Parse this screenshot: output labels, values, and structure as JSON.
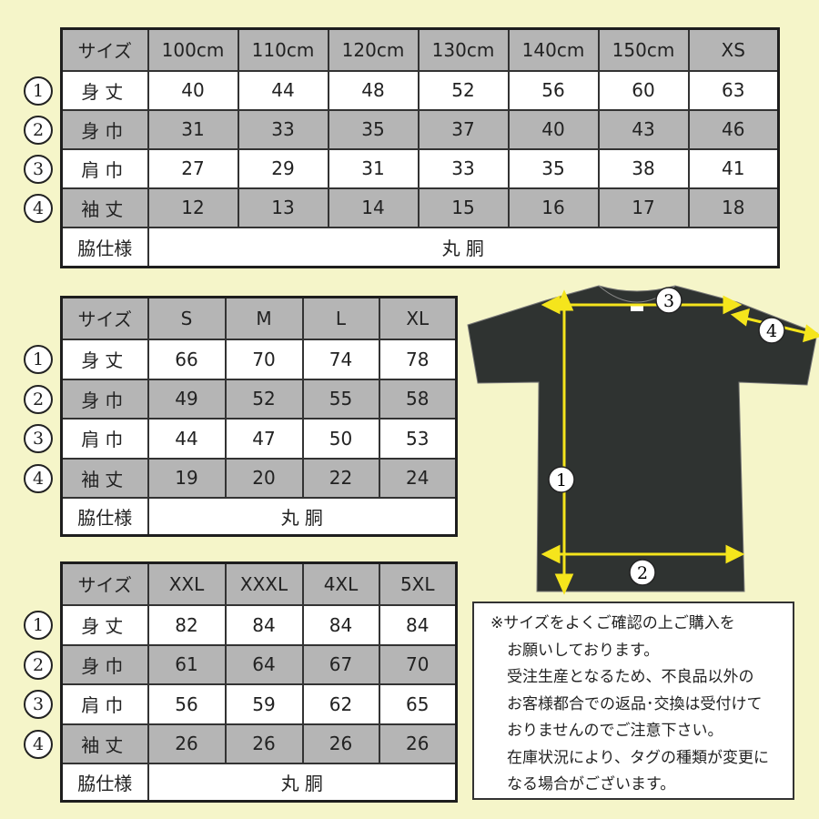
{
  "colors": {
    "background": "#f5f5c9",
    "gray_row": "#b5b5b5",
    "arrow": "#f5e51c",
    "shirt": "#2f3331"
  },
  "circle_numbers": [
    "①",
    "②",
    "③",
    "④"
  ],
  "tables": [
    {
      "header": [
        "サイズ",
        "100cm",
        "110cm",
        "120cm",
        "130cm",
        "140cm",
        "150cm",
        "XS"
      ],
      "rows": [
        {
          "num": "1",
          "label": "身丈",
          "values": [
            "40",
            "44",
            "48",
            "52",
            "56",
            "60",
            "63"
          ]
        },
        {
          "num": "2",
          "label": "身巾",
          "values": [
            "31",
            "33",
            "35",
            "37",
            "40",
            "43",
            "46"
          ]
        },
        {
          "num": "3",
          "label": "肩巾",
          "values": [
            "27",
            "29",
            "31",
            "33",
            "35",
            "38",
            "41"
          ]
        },
        {
          "num": "4",
          "label": "袖丈",
          "values": [
            "12",
            "13",
            "14",
            "15",
            "16",
            "17",
            "18"
          ]
        }
      ],
      "footer": {
        "label": "脇仕様",
        "value": "丸 胴"
      }
    },
    {
      "header": [
        "サイズ",
        "S",
        "M",
        "L",
        "XL"
      ],
      "rows": [
        {
          "num": "1",
          "label": "身丈",
          "values": [
            "66",
            "70",
            "74",
            "78"
          ]
        },
        {
          "num": "2",
          "label": "身巾",
          "values": [
            "49",
            "52",
            "55",
            "58"
          ]
        },
        {
          "num": "3",
          "label": "肩巾",
          "values": [
            "44",
            "47",
            "50",
            "53"
          ]
        },
        {
          "num": "4",
          "label": "袖丈",
          "values": [
            "19",
            "20",
            "22",
            "24"
          ]
        }
      ],
      "footer": {
        "label": "脇仕様",
        "value": "丸 胴"
      }
    },
    {
      "header": [
        "サイズ",
        "XXL",
        "XXXL",
        "4XL",
        "5XL"
      ],
      "rows": [
        {
          "num": "1",
          "label": "身丈",
          "values": [
            "82",
            "84",
            "84",
            "84"
          ]
        },
        {
          "num": "2",
          "label": "身巾",
          "values": [
            "61",
            "64",
            "67",
            "70"
          ]
        },
        {
          "num": "3",
          "label": "肩巾",
          "values": [
            "56",
            "59",
            "62",
            "65"
          ]
        },
        {
          "num": "4",
          "label": "袖丈",
          "values": [
            "26",
            "26",
            "26",
            "26"
          ]
        }
      ],
      "footer": {
        "label": "脇仕様",
        "value": "丸 胴"
      }
    }
  ],
  "diagram": {
    "labels": [
      "1",
      "2",
      "3",
      "4"
    ]
  },
  "note": {
    "lines": [
      "※サイズをよくご確認の上ご購入を",
      "お願いしております。",
      "受注生産となるため、不良品以外の",
      "お客様都合での返品･交換は受付けて",
      "おりませんのでご注意下さい。",
      "在庫状況により、タグの種類が変更に",
      "なる場合がございます。"
    ]
  }
}
